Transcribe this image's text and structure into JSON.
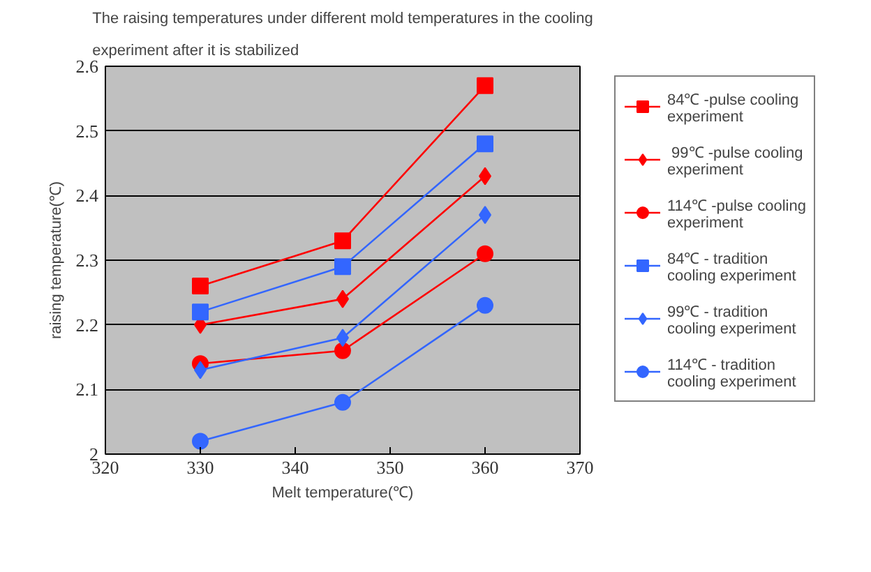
{
  "chart_data": {
    "type": "line",
    "title": "The raising temperatures under different mold temperatures in the cooling experiment after it is stabilized",
    "xlabel": "Melt temperature(℃)",
    "ylabel": "raising temperature(℃)",
    "x": [
      330,
      345,
      360
    ],
    "xlim": [
      320,
      370
    ],
    "xticks": [
      320,
      330,
      340,
      350,
      360,
      370
    ],
    "ylim": [
      2,
      2.6
    ],
    "yticks": [
      2,
      2.1,
      2.2,
      2.3,
      2.4,
      2.5,
      2.6
    ],
    "grid": "y",
    "legend": "right",
    "line_style": "solid",
    "series": [
      {
        "name": "84℃ -pulse cooling experiment",
        "color": "#ff0000",
        "marker": "square",
        "values": [
          2.26,
          2.33,
          2.57
        ]
      },
      {
        "name": " 99℃ -pulse cooling experiment",
        "color": "#ff0000",
        "marker": "diamond",
        "values": [
          2.2,
          2.24,
          2.43
        ]
      },
      {
        "name": "114℃ -pulse cooling experiment",
        "color": "#ff0000",
        "marker": "circle",
        "values": [
          2.14,
          2.16,
          2.31
        ]
      },
      {
        "name": "84℃ - tradition cooling experiment",
        "color": "#3366ff",
        "marker": "square",
        "values": [
          2.22,
          2.29,
          2.48
        ]
      },
      {
        "name": "99℃ - tradition cooling experiment",
        "color": "#3366ff",
        "marker": "diamond",
        "values": [
          2.13,
          2.18,
          2.37
        ]
      },
      {
        "name": "114℃ - tradition cooling experiment",
        "color": "#3366ff",
        "marker": "circle",
        "values": [
          2.02,
          2.08,
          2.23
        ]
      }
    ]
  }
}
